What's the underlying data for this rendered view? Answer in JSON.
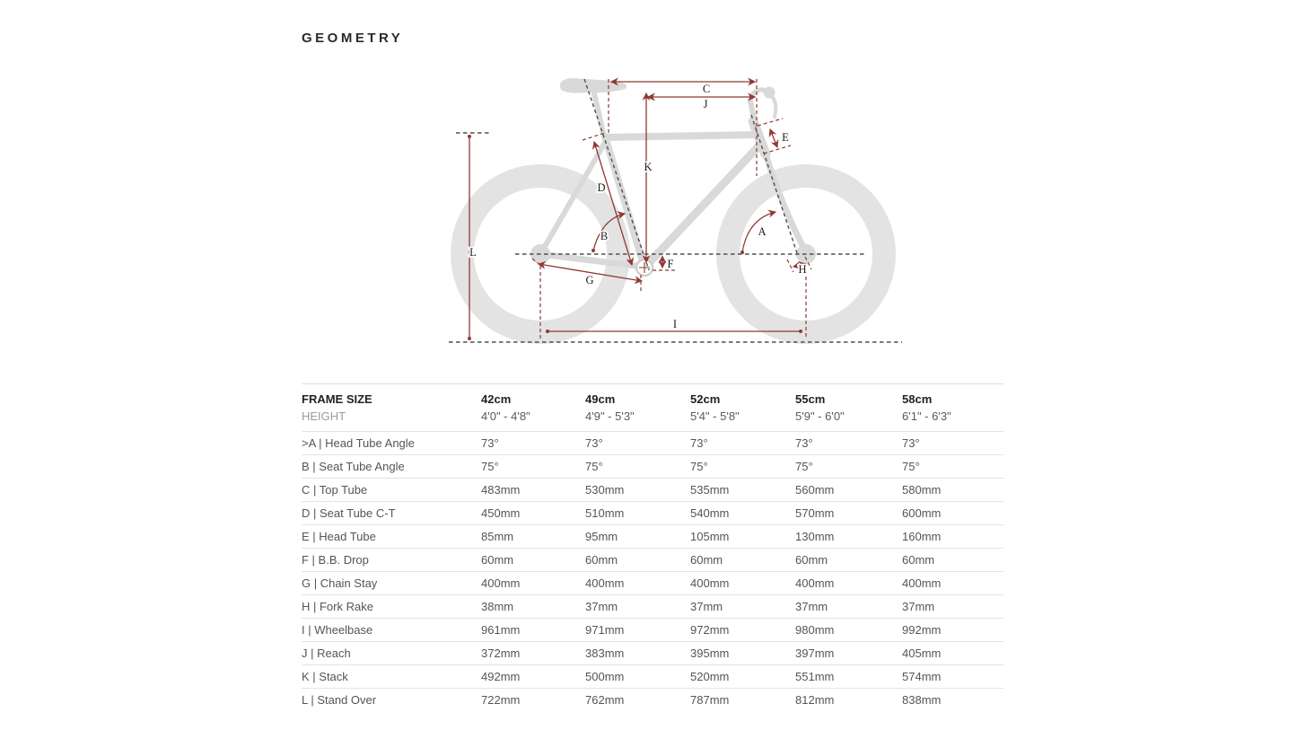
{
  "page": {
    "title": "GEOMETRY"
  },
  "diagram": {
    "description": "bicycle-geometry-diagram",
    "labels": {
      "a": "A",
      "b": "B",
      "c": "C",
      "d": "D",
      "e": "E",
      "f": "F",
      "g": "G",
      "h": "H",
      "i": "I",
      "j": "J",
      "k": "K",
      "l": "L"
    },
    "colors": {
      "dimension_red": "#8e3a32",
      "bike_gray": "#d9d9d9",
      "dashed_dark": "#4f4f4f"
    }
  },
  "table": {
    "header": {
      "label": "FRAME SIZE",
      "values": [
        "42cm",
        "49cm",
        "52cm",
        "55cm",
        "58cm"
      ]
    },
    "height_row": {
      "label": "HEIGHT",
      "values": [
        "4'0\" - 4'8\"",
        "4'9\" - 5'3\"",
        "5'4\" - 5'8\"",
        "5'9\" - 6'0\"",
        "6'1\" - 6'3\""
      ]
    },
    "rows": [
      {
        "label": ">A | Head Tube Angle",
        "values": [
          "73°",
          "73°",
          "73°",
          "73°",
          "73°"
        ]
      },
      {
        "label": "B | Seat Tube Angle",
        "values": [
          "75°",
          "75°",
          "75°",
          "75°",
          "75°"
        ]
      },
      {
        "label": "C | Top Tube",
        "values": [
          "483mm",
          "530mm",
          "535mm",
          "560mm",
          "580mm"
        ]
      },
      {
        "label": "D | Seat Tube C-T",
        "values": [
          "450mm",
          "510mm",
          "540mm",
          "570mm",
          "600mm"
        ]
      },
      {
        "label": "E | Head Tube",
        "values": [
          "85mm",
          "95mm",
          "105mm",
          "130mm",
          "160mm"
        ]
      },
      {
        "label": "F | B.B. Drop",
        "values": [
          "60mm",
          "60mm",
          "60mm",
          "60mm",
          "60mm"
        ]
      },
      {
        "label": "G | Chain Stay",
        "values": [
          "400mm",
          "400mm",
          "400mm",
          "400mm",
          "400mm"
        ]
      },
      {
        "label": "H | Fork Rake",
        "values": [
          "38mm",
          "37mm",
          "37mm",
          "37mm",
          "37mm"
        ]
      },
      {
        "label": "I | Wheelbase",
        "values": [
          "961mm",
          "971mm",
          "972mm",
          "980mm",
          "992mm"
        ]
      },
      {
        "label": "J | Reach",
        "values": [
          "372mm",
          "383mm",
          "395mm",
          "397mm",
          "405mm"
        ]
      },
      {
        "label": "K | Stack",
        "values": [
          "492mm",
          "500mm",
          "520mm",
          "551mm",
          "574mm"
        ]
      },
      {
        "label": "L | Stand Over",
        "values": [
          "722mm",
          "762mm",
          "787mm",
          "812mm",
          "838mm"
        ]
      }
    ]
  }
}
